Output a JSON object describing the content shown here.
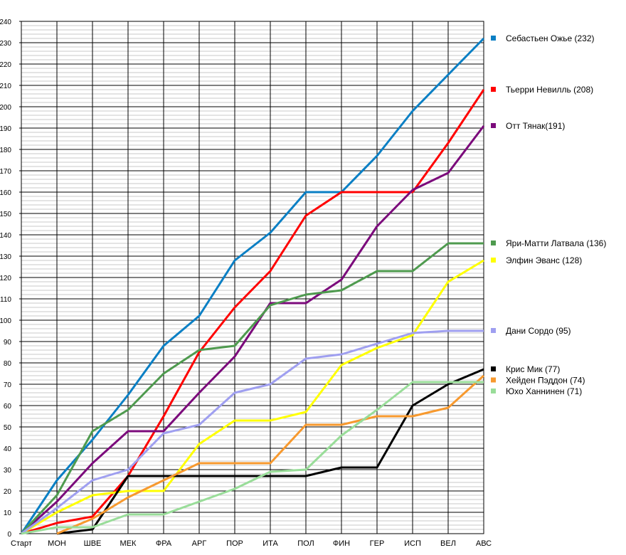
{
  "chart_data": {
    "type": "line",
    "title": "",
    "xlabel": "",
    "ylabel": "",
    "ylim": [
      0,
      240
    ],
    "ytick_step": 10,
    "minor_grid_step": 2,
    "grid": true,
    "legend_placement": "right",
    "categories": [
      "Старт",
      "МОН",
      "ШВЕ",
      "МЕК",
      "ФРА",
      "АРГ",
      "ПОР",
      "ИТА",
      "ПОЛ",
      "ФИН",
      "ГЕР",
      "ИСП",
      "ВЕЛ",
      "АВС"
    ],
    "series": [
      {
        "name": "Себастьен Ожье (232)",
        "color": "#0a7fc4",
        "values": [
          0,
          25,
          44,
          65,
          88,
          102,
          128,
          141,
          160,
          160,
          177,
          198,
          215,
          232
        ]
      },
      {
        "name": "Тьерри Невилль (208)",
        "color": "#ff0000",
        "values": [
          0,
          5,
          8,
          27,
          55,
          85,
          106,
          123,
          149,
          160,
          160,
          160,
          183,
          208
        ]
      },
      {
        "name": "Отт Тянак(191)",
        "color": "#7b0a7b",
        "values": [
          0,
          15,
          33,
          48,
          48,
          66,
          83,
          108,
          108,
          119,
          144,
          161,
          169,
          191
        ]
      },
      {
        "name": "Яри-Матти Латвала (136)",
        "color": "#4e9a4e",
        "values": [
          0,
          18,
          48,
          58,
          75,
          86,
          88,
          107,
          112,
          114,
          123,
          123,
          136,
          136
        ]
      },
      {
        "name": "Элфин Эванс (128)",
        "color": "#ffff00",
        "values": [
          0,
          10,
          18,
          20,
          20,
          42,
          53,
          53,
          57,
          79,
          87,
          93,
          118,
          128
        ]
      },
      {
        "name": "Дани Сордо (95)",
        "color": "#9f9ff0",
        "values": [
          0,
          12,
          25,
          30,
          47,
          51,
          66,
          70,
          82,
          84,
          89,
          94,
          95,
          95
        ]
      },
      {
        "name": "Крис Мик (77)",
        "color": "#000000",
        "values": [
          null,
          0,
          2,
          27,
          27,
          27,
          27,
          27,
          27,
          31,
          31,
          60,
          70,
          77
        ]
      },
      {
        "name": "Хейден Пэддон (74)",
        "color": "#f7992e",
        "values": [
          null,
          0,
          7,
          17,
          25,
          33,
          33,
          33,
          51,
          51,
          55,
          55,
          59,
          74
        ]
      },
      {
        "name": "Юхо Ханнинен (71)",
        "color": "#99dd99",
        "values": [
          0,
          3,
          3,
          9,
          9,
          15,
          21,
          29,
          30,
          46,
          58,
          71,
          71,
          71
        ]
      }
    ]
  }
}
